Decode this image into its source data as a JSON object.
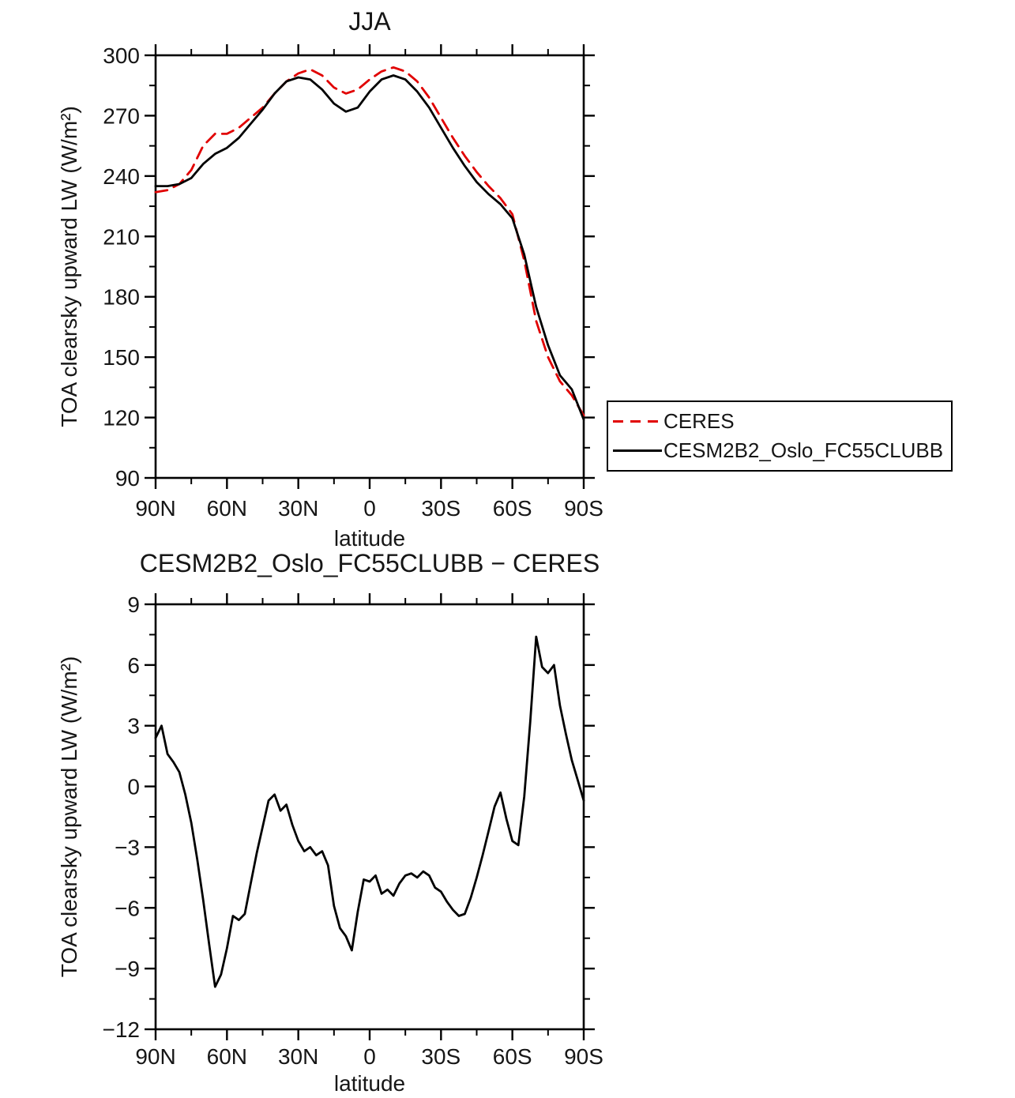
{
  "figure": {
    "background": "#ffffff",
    "text_color": "#161616"
  },
  "colors": {
    "ceres": "#e10000",
    "model": "#000000",
    "axis": "#000000"
  },
  "legend": {
    "items": [
      {
        "label": "CERES",
        "color": "#e10000",
        "dash": true
      },
      {
        "label": "CESM2B2_Oslo_FC55CLUBB",
        "color": "#000000",
        "dash": false
      }
    ],
    "position": "outside lower right of top chart"
  },
  "chart_data": [
    {
      "name": "jja-chart",
      "type": "line",
      "title": "JJA",
      "xlabel": "latitude",
      "ylabel": "TOA clearsky upward LW (W/m²)",
      "xlim": [
        90,
        -90
      ],
      "ylim": [
        90,
        300
      ],
      "grid": false,
      "x_major_step": 30,
      "x_minor_step": 15,
      "y_major_step": 30,
      "y_minor_step": 15,
      "xticks": [
        {
          "v": 90,
          "label": "90N"
        },
        {
          "v": 60,
          "label": "60N"
        },
        {
          "v": 30,
          "label": "30N"
        },
        {
          "v": 0,
          "label": "0"
        },
        {
          "v": -30,
          "label": "30S"
        },
        {
          "v": -60,
          "label": "60S"
        },
        {
          "v": -90,
          "label": "90S"
        }
      ],
      "yticks": [
        {
          "v": 90,
          "label": "90"
        },
        {
          "v": 120,
          "label": "120"
        },
        {
          "v": 150,
          "label": "150"
        },
        {
          "v": 180,
          "label": "180"
        },
        {
          "v": 210,
          "label": "210"
        },
        {
          "v": 240,
          "label": "240"
        },
        {
          "v": 270,
          "label": "270"
        },
        {
          "v": 300,
          "label": "300"
        }
      ],
      "x": [
        90,
        85,
        80,
        75,
        70,
        65,
        60,
        55,
        50,
        45,
        40,
        35,
        30,
        25,
        20,
        15,
        10,
        5,
        0,
        -5,
        -10,
        -15,
        -20,
        -25,
        -30,
        -35,
        -40,
        -45,
        -50,
        -55,
        -60,
        -65,
        -70,
        -75,
        -80,
        -85,
        -90
      ],
      "series": [
        {
          "name": "CERES",
          "color": "#e10000",
          "dash": "15 9",
          "values": [
            232,
            233,
            236,
            243,
            255,
            261,
            261,
            264,
            269,
            274,
            281,
            287,
            291,
            293,
            290,
            284,
            281,
            283,
            288,
            292,
            294,
            292,
            287,
            279,
            269,
            259,
            250,
            242,
            235,
            229,
            221,
            198,
            168,
            150,
            138,
            131,
            121
          ]
        },
        {
          "name": "CESM2B2_Oslo_FC55CLUBB",
          "color": "#000000",
          "dash": null,
          "values": [
            235,
            235,
            236,
            239,
            246,
            251,
            254,
            259,
            266,
            273,
            281,
            287,
            289,
            288,
            283,
            276,
            272,
            274,
            282,
            288,
            290,
            288,
            282,
            274,
            264,
            254,
            245,
            237,
            231,
            226,
            219,
            201,
            175,
            156,
            141,
            134,
            119
          ]
        }
      ]
    },
    {
      "name": "difference-chart",
      "type": "line",
      "title": "CESM2B2_Oslo_FC55CLUBB − CERES",
      "xlabel": "latitude",
      "ylabel": "TOA clearsky upward LW (W/m²)",
      "xlim": [
        90,
        -90
      ],
      "ylim": [
        -12,
        9
      ],
      "grid": false,
      "x_major_step": 30,
      "x_minor_step": 15,
      "y_major_step": 3,
      "y_minor_step": 1.5,
      "xticks": [
        {
          "v": 90,
          "label": "90N"
        },
        {
          "v": 60,
          "label": "60N"
        },
        {
          "v": 30,
          "label": "30N"
        },
        {
          "v": 0,
          "label": "0"
        },
        {
          "v": -30,
          "label": "30S"
        },
        {
          "v": -60,
          "label": "60S"
        },
        {
          "v": -90,
          "label": "90S"
        }
      ],
      "yticks": [
        {
          "v": -12,
          "label": "−12"
        },
        {
          "v": -9,
          "label": "−9"
        },
        {
          "v": -6,
          "label": "−6"
        },
        {
          "v": -3,
          "label": "−3"
        },
        {
          "v": 0,
          "label": "0"
        },
        {
          "v": 3,
          "label": "3"
        },
        {
          "v": 6,
          "label": "6"
        },
        {
          "v": 9,
          "label": "9"
        }
      ],
      "x": [
        90,
        87.5,
        85,
        82.5,
        80,
        77.5,
        75,
        72.5,
        70,
        67.5,
        65,
        62.5,
        60,
        57.5,
        55,
        52.5,
        50,
        47.5,
        45,
        42.5,
        40,
        37.5,
        35,
        32.5,
        30,
        27.5,
        25,
        22.5,
        20,
        17.5,
        15,
        12.5,
        10,
        7.5,
        5,
        2.5,
        0,
        -2.5,
        -5,
        -7.5,
        -10,
        -12.5,
        -15,
        -17.5,
        -20,
        -22.5,
        -25,
        -27.5,
        -30,
        -32.5,
        -35,
        -37.5,
        -40,
        -42.5,
        -45,
        -47.5,
        -50,
        -52.5,
        -55,
        -57.5,
        -60,
        -62.5,
        -65,
        -67.5,
        -70,
        -72.5,
        -75,
        -77.5,
        -80,
        -82.5,
        -85,
        -87.5,
        -90
      ],
      "series": [
        {
          "name": "CESM2B2_Oslo_FC55CLUBB minus CERES",
          "color": "#000000",
          "dash": null,
          "values": [
            2.4,
            3.0,
            1.6,
            1.2,
            0.7,
            -0.4,
            -1.8,
            -3.6,
            -5.6,
            -7.8,
            -9.9,
            -9.3,
            -8.0,
            -6.4,
            -6.6,
            -6.3,
            -4.8,
            -3.3,
            -2.0,
            -0.7,
            -0.4,
            -1.2,
            -0.9,
            -1.9,
            -2.7,
            -3.2,
            -3.0,
            -3.4,
            -3.2,
            -3.9,
            -5.9,
            -7.0,
            -7.4,
            -8.1,
            -6.2,
            -4.6,
            -4.7,
            -4.4,
            -5.3,
            -5.1,
            -5.4,
            -4.8,
            -4.4,
            -4.3,
            -4.5,
            -4.2,
            -4.4,
            -5.0,
            -5.2,
            -5.7,
            -6.1,
            -6.4,
            -6.3,
            -5.5,
            -4.5,
            -3.4,
            -2.2,
            -1.0,
            -0.3,
            -1.6,
            -2.7,
            -2.9,
            -0.5,
            3.2,
            7.4,
            5.9,
            5.6,
            6.0,
            4.0,
            2.6,
            1.3,
            0.3,
            -0.7
          ]
        }
      ]
    }
  ]
}
